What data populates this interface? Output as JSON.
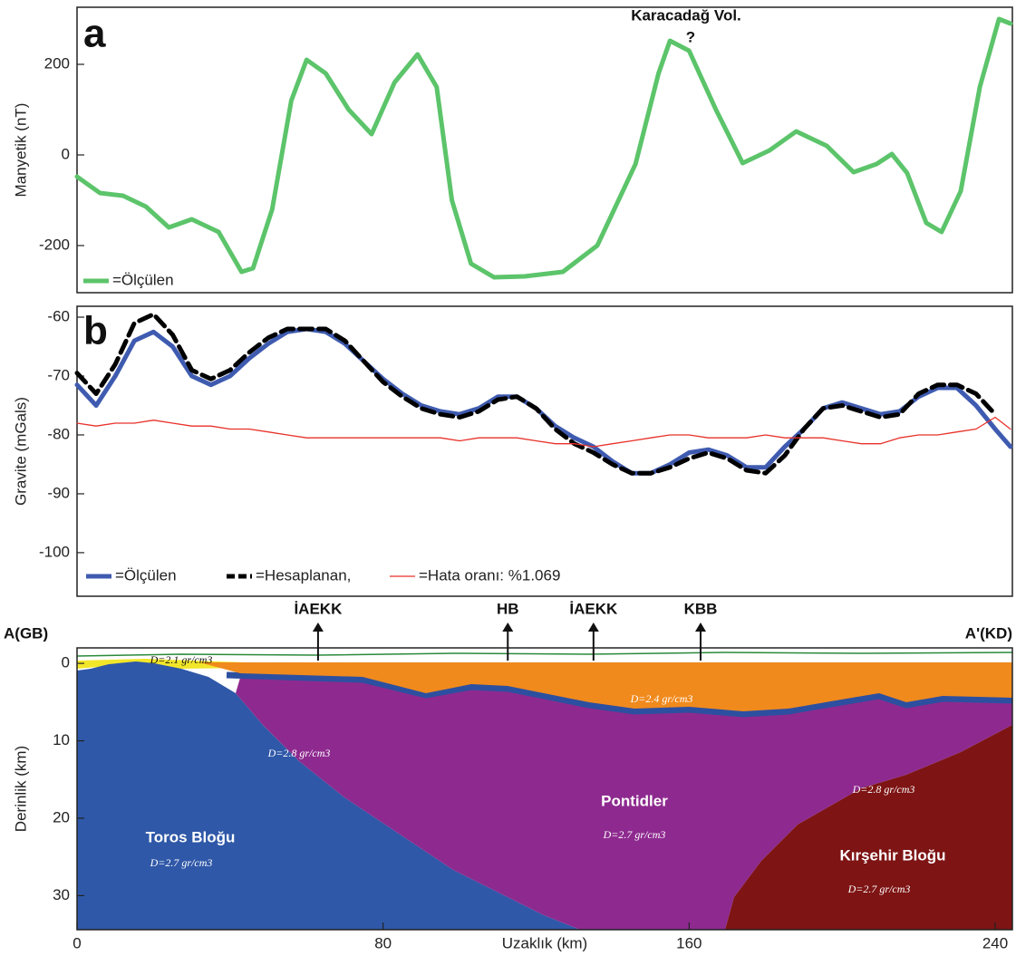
{
  "chart_data": [
    {
      "type": "line",
      "panel_label": "a",
      "ylabel": "Manyetik (nT)",
      "annotations": [
        "Karacadağ Vol.",
        "?"
      ],
      "xlim": [
        0,
        244.5
      ],
      "ylim": [
        -304,
        326
      ],
      "yticks": [
        -200,
        0,
        200
      ],
      "series": [
        {
          "name": "=Ölçülen",
          "color": "#5cc46a",
          "line_style": "thick",
          "x": [
            0,
            6,
            12,
            18,
            24,
            30,
            37,
            43,
            46,
            51,
            56,
            60,
            65,
            71,
            77,
            83,
            89,
            94,
            98,
            103,
            109,
            117,
            127,
            136,
            146,
            152,
            155,
            160,
            167,
            174,
            181,
            188,
            196,
            203,
            209,
            213,
            217,
            222,
            226,
            231,
            236,
            241,
            244
          ],
          "values": [
            -48,
            -84,
            -90,
            -114,
            -160,
            -142,
            -170,
            -258,
            -250,
            -120,
            120,
            210,
            180,
            100,
            46,
            160,
            222,
            150,
            -100,
            -240,
            -270,
            -268,
            -258,
            -200,
            -20,
            180,
            252,
            230,
            100,
            -18,
            10,
            52,
            20,
            -38,
            -20,
            2,
            -40,
            -150,
            -170,
            -80,
            150,
            300,
            290
          ]
        }
      ]
    },
    {
      "type": "line",
      "panel_label": "b",
      "ylabel": "Gravite (mGals)",
      "xlim": [
        0,
        244.5
      ],
      "ylim": [
        -107.4,
        -58.15
      ],
      "yticks": [
        -100,
        -90,
        -80,
        -70,
        -60
      ],
      "series": [
        {
          "name": "=Ölçülen",
          "color": "#3f5bb0",
          "line_style": "thick",
          "x": [
            0,
            5,
            10,
            15,
            20,
            25,
            30,
            35,
            40,
            45,
            50,
            55,
            60,
            65,
            70,
            75,
            80,
            85,
            90,
            95,
            100,
            105,
            110,
            115,
            120,
            125,
            130,
            135,
            140,
            145,
            150,
            155,
            160,
            165,
            170,
            175,
            180,
            185,
            190,
            195,
            200,
            205,
            210,
            215,
            220,
            225,
            230,
            235,
            240,
            244
          ],
          "values": [
            -71.5,
            -75,
            -70,
            -64,
            -62.5,
            -65,
            -70,
            -71.5,
            -70,
            -67,
            -64.5,
            -62.5,
            -62,
            -62.5,
            -64.5,
            -67.5,
            -70.5,
            -73,
            -75,
            -76,
            -76.5,
            -75.5,
            -73.5,
            -73.5,
            -75.5,
            -78.5,
            -80.5,
            -82,
            -84.5,
            -86.5,
            -86.5,
            -85,
            -83,
            -82.5,
            -83.5,
            -85.5,
            -85.5,
            -82,
            -79,
            -75.5,
            -74.5,
            -75.5,
            -76.5,
            -76,
            -73.5,
            -72,
            -72,
            -75,
            -79,
            -82
          ]
        },
        {
          "name": "=Hesaplanan,",
          "color": "#000000",
          "line_style": "dashed",
          "x": [
            0,
            5,
            10,
            15,
            20,
            25,
            30,
            35,
            40,
            45,
            50,
            55,
            60,
            65,
            70,
            75,
            80,
            85,
            90,
            95,
            100,
            105,
            110,
            115,
            120,
            125,
            130,
            135,
            140,
            145,
            150,
            155,
            160,
            165,
            170,
            175,
            180,
            185,
            190,
            195,
            200,
            205,
            210,
            215,
            220,
            225,
            230,
            235,
            240,
            244
          ],
          "values": [
            -69.5,
            -73,
            -68,
            -61,
            -59.5,
            -63,
            -69,
            -70.5,
            -69,
            -66,
            -63.5,
            -62,
            -62,
            -62,
            -64,
            -67.5,
            -71,
            -73.5,
            -75.5,
            -76.5,
            -77,
            -76,
            -74,
            -73.5,
            -75.5,
            -79,
            -81.5,
            -83,
            -85,
            -86.5,
            -86.5,
            -85.5,
            -84,
            -83,
            -84,
            -86,
            -86.5,
            -83.5,
            -79,
            -75.5,
            -75,
            -76,
            -77,
            -76.5,
            -73,
            -71.5,
            -71.5,
            -73,
            -76.5,
            null
          ]
        },
        {
          "name": "=Hata oranı: %1.069",
          "color": "#e8312a",
          "line_style": "thin",
          "x": [
            0,
            5,
            10,
            15,
            20,
            25,
            30,
            35,
            40,
            45,
            50,
            55,
            60,
            65,
            70,
            75,
            80,
            85,
            90,
            95,
            100,
            105,
            110,
            115,
            120,
            125,
            130,
            135,
            140,
            145,
            150,
            155,
            160,
            165,
            170,
            175,
            180,
            185,
            190,
            195,
            200,
            205,
            210,
            215,
            220,
            225,
            230,
            235,
            240,
            244
          ],
          "values": [
            -78,
            -78.5,
            -78,
            -78,
            -77.5,
            -78,
            -78.5,
            -78.5,
            -79,
            -79,
            -79.5,
            -80,
            -80.5,
            -80.5,
            -80.5,
            -80.5,
            -80.5,
            -80.5,
            -80.5,
            -80.5,
            -81,
            -80.5,
            -80.5,
            -80.5,
            -81,
            -81.5,
            -81.5,
            -82,
            -81.5,
            -81,
            -80.5,
            -80,
            -80,
            -80.5,
            -80.5,
            -80.5,
            -80,
            -80.5,
            -80.5,
            -80.5,
            -81,
            -81.5,
            -81.5,
            -80.5,
            -80,
            -80,
            -79.5,
            -79,
            -77,
            -79
          ]
        }
      ]
    },
    {
      "type": "cross-section",
      "ylabel": "Derinlik (km)",
      "xlabel": "Uzaklık (km)",
      "xlim": [
        0,
        244.5
      ],
      "xticks": [
        0,
        80,
        160,
        240
      ],
      "ylim": [
        -2,
        34.4
      ],
      "yticks": [
        0,
        10,
        20,
        30
      ],
      "invert_y": true,
      "end_labels": [
        "A(GB)",
        "A'(KD)"
      ],
      "markers": [
        {
          "label": "İAEKK",
          "x": 63
        },
        {
          "label": "HB",
          "x": 112.6
        },
        {
          "label": "İAEKK",
          "x": 135
        },
        {
          "label": "KBB",
          "x": 163
        }
      ],
      "region_labels": [
        "D=2.1 gr/cm3",
        "D=2.4 gr/cm3",
        "D=2.8 gr/cm3",
        "Pontidler",
        "D=2.7 gr/cm3",
        "D=2.8 gr/cm3",
        "Toros Bloğu",
        "D=2.7 gr/cm3",
        "Kırşehir Bloğu",
        "D=2.7 gr/cm3"
      ]
    }
  ]
}
